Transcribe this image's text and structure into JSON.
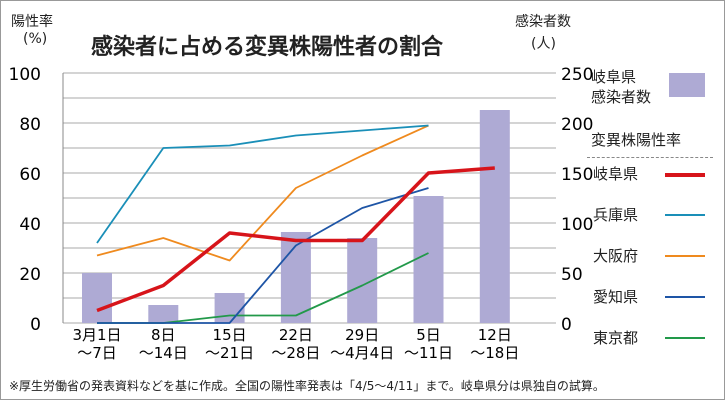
{
  "chart_data": {
    "type": "bar+line",
    "title": "感染者に占める変異株陽性者の割合",
    "ylabel_left": [
      "陽性率",
      "(%)"
    ],
    "ylabel_right": [
      "感染者数",
      "(人)"
    ],
    "ylim_left": [
      0,
      100
    ],
    "ylim_right": [
      0,
      250
    ],
    "yticks_left": [
      "0",
      "20",
      "40",
      "60",
      "80",
      "100"
    ],
    "yticks_right": [
      "0",
      "50",
      "100",
      "150",
      "200",
      "250"
    ],
    "categories": [
      [
        "3月1日",
        "～7日"
      ],
      [
        "8日",
        "～14日"
      ],
      [
        "15日",
        "～21日"
      ],
      [
        "22日",
        "～28日"
      ],
      [
        "29日",
        "～4月4日"
      ],
      [
        "5日",
        "～11日"
      ],
      [
        "12日",
        "～18日"
      ]
    ],
    "bars": {
      "name": "岐阜県感染者数",
      "name_lines": [
        "岐阜県",
        "感染者数"
      ],
      "color": "#aeaad4",
      "values": [
        50,
        18,
        30,
        91,
        85,
        127,
        213
      ]
    },
    "legend_heading": "変異株陽性率",
    "series": [
      {
        "name": "岐阜県",
        "color": "#d7141a",
        "width": 3.5,
        "values": [
          5,
          15,
          36,
          33,
          33,
          60,
          62
        ]
      },
      {
        "name": "兵庫県",
        "color": "#1a8fb8",
        "width": 1.8,
        "values": [
          32,
          70,
          71,
          75,
          77,
          79,
          null
        ]
      },
      {
        "name": "大阪府",
        "color": "#ef8a1e",
        "width": 1.8,
        "values": [
          27,
          34,
          25,
          54,
          67,
          79,
          null
        ]
      },
      {
        "name": "愛知県",
        "color": "#1e55a6",
        "width": 1.8,
        "values": [
          0,
          0,
          0,
          31,
          46,
          54,
          null
        ]
      },
      {
        "name": "東京都",
        "color": "#22994a",
        "width": 1.8,
        "values": [
          0,
          0,
          3,
          3,
          15,
          28,
          null
        ]
      }
    ],
    "footnote": "※厚生労働省の発表資料などを基に作成。全国の陽性率発表は「4/5～4/11」まで。岐阜県分は県独自の試算。"
  }
}
